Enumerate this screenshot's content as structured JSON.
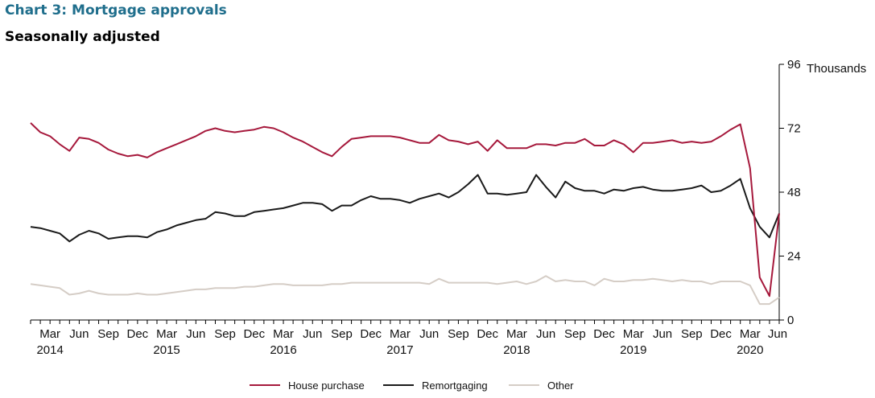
{
  "page": {
    "title": "Chart 3: Mortgage approvals",
    "subtitle": "Seasonally adjusted"
  },
  "chart_data": {
    "type": "line",
    "title": "Chart 3: Mortgage approvals",
    "subtitle": "Seasonally adjusted",
    "y_unit": "Thousands",
    "ylim": [
      0,
      96
    ],
    "y_ticks": [
      0,
      24,
      48,
      72,
      96
    ],
    "x_range": [
      "2014-01",
      "2020-06"
    ],
    "x_tick_labels": [
      "Mar",
      "Jun",
      "Sep",
      "Dec",
      "Mar",
      "Jun",
      "Sep",
      "Dec",
      "Mar",
      "Jun",
      "Sep",
      "Dec",
      "Mar",
      "Jun",
      "Sep",
      "Dec",
      "Mar",
      "Jun",
      "Sep",
      "Dec",
      "Mar",
      "Jun",
      "Sep",
      "Dec",
      "Mar",
      "Jun"
    ],
    "x_year_labels": [
      "2014",
      "2015",
      "2016",
      "2017",
      "2018",
      "2019",
      "2020"
    ],
    "grid": false,
    "y_axis_side": "right",
    "legend_position": "bottom",
    "x": [
      "2014-01",
      "2014-02",
      "2014-03",
      "2014-04",
      "2014-05",
      "2014-06",
      "2014-07",
      "2014-08",
      "2014-09",
      "2014-10",
      "2014-11",
      "2014-12",
      "2015-01",
      "2015-02",
      "2015-03",
      "2015-04",
      "2015-05",
      "2015-06",
      "2015-07",
      "2015-08",
      "2015-09",
      "2015-10",
      "2015-11",
      "2015-12",
      "2016-01",
      "2016-02",
      "2016-03",
      "2016-04",
      "2016-05",
      "2016-06",
      "2016-07",
      "2016-08",
      "2016-09",
      "2016-10",
      "2016-11",
      "2016-12",
      "2017-01",
      "2017-02",
      "2017-03",
      "2017-04",
      "2017-05",
      "2017-06",
      "2017-07",
      "2017-08",
      "2017-09",
      "2017-10",
      "2017-11",
      "2017-12",
      "2018-01",
      "2018-02",
      "2018-03",
      "2018-04",
      "2018-05",
      "2018-06",
      "2018-07",
      "2018-08",
      "2018-09",
      "2018-10",
      "2018-11",
      "2018-12",
      "2019-01",
      "2019-02",
      "2019-03",
      "2019-04",
      "2019-05",
      "2019-06",
      "2019-07",
      "2019-08",
      "2019-09",
      "2019-10",
      "2019-11",
      "2019-12",
      "2020-01",
      "2020-02",
      "2020-03",
      "2020-04",
      "2020-05",
      "2020-06"
    ],
    "series": [
      {
        "name": "House purchase",
        "color": "#a6193c",
        "values": [
          74.0,
          70.5,
          69.0,
          66.0,
          63.5,
          68.5,
          68.0,
          66.5,
          64.0,
          62.5,
          61.5,
          62.0,
          61.0,
          63.0,
          64.5,
          66.0,
          67.5,
          69.0,
          71.0,
          72.0,
          71.0,
          70.5,
          71.0,
          71.5,
          72.5,
          72.0,
          70.5,
          68.5,
          67.0,
          65.0,
          63.0,
          61.5,
          65.0,
          68.0,
          68.5,
          69.0,
          69.0,
          69.0,
          68.5,
          67.5,
          66.5,
          66.5,
          69.5,
          67.5,
          67.0,
          66.0,
          67.0,
          63.5,
          67.5,
          64.5,
          64.5,
          64.5,
          66.0,
          66.0,
          65.5,
          66.5,
          66.5,
          68.0,
          65.5,
          65.5,
          67.5,
          66.0,
          63.0,
          66.5,
          66.5,
          67.0,
          67.5,
          66.5,
          67.0,
          66.5,
          67.0,
          69.0,
          71.5,
          73.5,
          57.0,
          16.0,
          9.0,
          40.0
        ]
      },
      {
        "name": "Remortgaging",
        "color": "#1a1a1a",
        "values": [
          35.0,
          34.5,
          33.5,
          32.5,
          29.5,
          32.0,
          33.5,
          32.5,
          30.5,
          31.0,
          31.5,
          31.5,
          31.0,
          33.0,
          34.0,
          35.5,
          36.5,
          37.5,
          38.0,
          40.5,
          40.0,
          39.0,
          39.0,
          40.5,
          41.0,
          41.5,
          42.0,
          43.0,
          44.0,
          44.0,
          43.5,
          41.0,
          43.0,
          43.0,
          45.0,
          46.5,
          45.5,
          45.5,
          45.0,
          44.0,
          45.5,
          46.5,
          47.5,
          46.0,
          48.0,
          51.0,
          54.5,
          47.5,
          47.5,
          47.0,
          47.5,
          48.0,
          54.5,
          50.0,
          46.0,
          52.0,
          49.5,
          48.5,
          48.5,
          47.5,
          49.0,
          48.5,
          49.5,
          50.0,
          49.0,
          48.5,
          48.5,
          49.0,
          49.5,
          50.5,
          48.0,
          48.5,
          50.5,
          53.0,
          42.0,
          35.0,
          31.0,
          40.0
        ]
      },
      {
        "name": "Other",
        "color": "#d5cdc6",
        "values": [
          13.5,
          13.0,
          12.5,
          12.0,
          9.5,
          10.0,
          11.0,
          10.0,
          9.5,
          9.5,
          9.5,
          10.0,
          9.5,
          9.5,
          10.0,
          10.5,
          11.0,
          11.5,
          11.5,
          12.0,
          12.0,
          12.0,
          12.5,
          12.5,
          13.0,
          13.5,
          13.5,
          13.0,
          13.0,
          13.0,
          13.0,
          13.5,
          13.5,
          14.0,
          14.0,
          14.0,
          14.0,
          14.0,
          14.0,
          14.0,
          14.0,
          13.5,
          15.5,
          14.0,
          14.0,
          14.0,
          14.0,
          14.0,
          13.5,
          14.0,
          14.5,
          13.5,
          14.5,
          16.5,
          14.5,
          15.0,
          14.5,
          14.5,
          13.0,
          15.5,
          14.5,
          14.5,
          15.0,
          15.0,
          15.5,
          15.0,
          14.5,
          15.0,
          14.5,
          14.5,
          13.5,
          14.5,
          14.5,
          14.5,
          13.0,
          6.0,
          6.0,
          8.5
        ]
      }
    ]
  }
}
